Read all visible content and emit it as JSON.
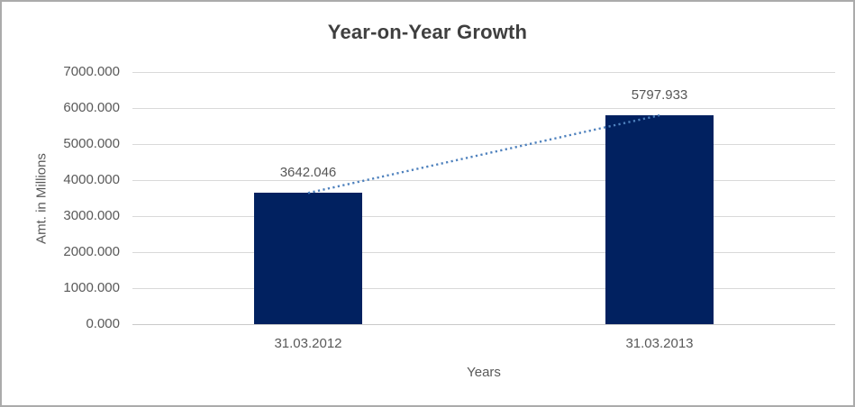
{
  "chart_data": {
    "type": "bar",
    "title": "Year-on-Year Growth",
    "xlabel": "Years",
    "ylabel": "Amt. in Millions",
    "categories": [
      "31.03.2012",
      "31.03.2013"
    ],
    "values": [
      3642.046,
      5797.933
    ],
    "data_labels": [
      "3642.046",
      "5797.933"
    ],
    "y_ticks": [
      "7000.000",
      "6000.000",
      "5000.000",
      "4000.000",
      "3000.000",
      "2000.000",
      "1000.000",
      "0.000"
    ],
    "ylim": [
      0,
      7000
    ],
    "y_tick_step": 1000,
    "grid": true,
    "legend": "none",
    "trendline": {
      "style": "dotted",
      "color": "#4e81bd",
      "from_value": 3642.046,
      "to_value": 5797.933
    },
    "colors": {
      "bar_fill": "#012160",
      "gridline": "#d9d9d9",
      "axis_line": "#c9c9c9",
      "title_text": "#3f3f3f",
      "tick_text": "#595959",
      "data_label_text": "#565656",
      "border": "#ababab",
      "background": "#ffffff"
    }
  }
}
